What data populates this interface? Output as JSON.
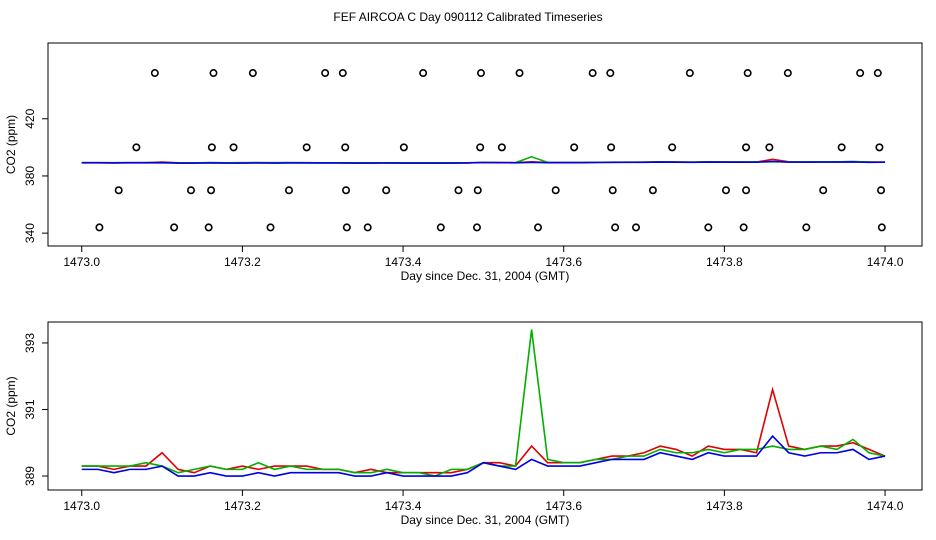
{
  "title": "FEF AIRCOA C  Day 090112  Calibrated Timeseries",
  "chart_data": [
    {
      "type": "scatter",
      "xlabel": "Day since Dec. 31, 2004 (GMT)",
      "ylabel": "CO2 (ppm)",
      "xlim": [
        1472.958,
        1474.046
      ],
      "ylim": [
        331,
        473
      ],
      "xticks": [
        {
          "value": 1473.0,
          "label": "1473.0"
        },
        {
          "value": 1473.2,
          "label": "1473.2"
        },
        {
          "value": 1473.4,
          "label": "1473.4"
        },
        {
          "value": 1473.6,
          "label": "1473.6"
        },
        {
          "value": 1473.8,
          "label": "1473.8"
        },
        {
          "value": 1474.0,
          "label": "1474.0"
        }
      ],
      "yticks": [
        340,
        380,
        420
      ],
      "x": [
        1473.0,
        1473.02,
        1473.04,
        1473.06,
        1473.08,
        1473.1,
        1473.12,
        1473.14,
        1473.16,
        1473.18,
        1473.2,
        1473.22,
        1473.24,
        1473.26,
        1473.28,
        1473.3,
        1473.32,
        1473.34,
        1473.36,
        1473.38,
        1473.4,
        1473.42,
        1473.44,
        1473.46,
        1473.48,
        1473.5,
        1473.52,
        1473.54,
        1473.56,
        1473.58,
        1473.6,
        1473.62,
        1473.64,
        1473.66,
        1473.68,
        1473.7,
        1473.72,
        1473.74,
        1473.76,
        1473.78,
        1473.8,
        1473.82,
        1473.84,
        1473.86,
        1473.88,
        1473.9,
        1473.92,
        1473.94,
        1473.96,
        1473.98,
        1474.0
      ],
      "series": [
        {
          "type": "scatter",
          "color": "#000000",
          "x": [
            1473.091,
            1473.164,
            1473.213,
            1473.303,
            1473.325,
            1473.425,
            1473.497,
            1473.545,
            1473.636,
            1473.658,
            1473.757,
            1473.829,
            1473.879,
            1473.969,
            1473.991,
            1473.068,
            1473.162,
            1473.189,
            1473.28,
            1473.328,
            1473.401,
            1473.496,
            1473.523,
            1473.613,
            1473.659,
            1473.735,
            1473.827,
            1473.856,
            1473.946,
            1473.993,
            1473.046,
            1473.136,
            1473.161,
            1473.258,
            1473.329,
            1473.379,
            1473.469,
            1473.493,
            1473.59,
            1473.661,
            1473.711,
            1473.802,
            1473.827,
            1473.923,
            1473.995,
            1473.022,
            1473.115,
            1473.158,
            1473.235,
            1473.33,
            1473.356,
            1473.447,
            1473.492,
            1473.568,
            1473.664,
            1473.69,
            1473.78,
            1473.824,
            1473.902,
            1473.996
          ],
          "values": [
            452,
            452,
            452,
            452,
            452,
            452,
            452,
            452,
            452,
            452,
            452,
            452,
            452,
            452,
            452,
            400,
            400,
            400,
            400,
            400,
            400,
            400,
            400,
            400,
            400,
            400,
            400,
            400,
            400,
            400,
            370,
            370,
            370,
            370,
            370,
            370,
            370,
            370,
            370,
            370,
            370,
            370,
            370,
            370,
            370,
            344,
            344,
            344,
            344,
            344,
            344,
            344,
            344,
            344,
            344,
            344,
            344,
            344,
            344,
            344
          ]
        },
        {
          "type": "line",
          "color": "#e00000",
          "values": [
            389.3,
            389.3,
            389.2,
            389.3,
            389.3,
            389.7,
            389.2,
            389.1,
            389.3,
            389.2,
            389.3,
            389.2,
            389.3,
            389.3,
            389.3,
            389.2,
            389.2,
            389.1,
            389.2,
            389.1,
            389.1,
            389.1,
            389.1,
            389.1,
            389.2,
            389.4,
            389.4,
            389.3,
            389.9,
            389.4,
            389.4,
            389.4,
            389.5,
            389.6,
            389.6,
            389.7,
            389.9,
            389.8,
            389.6,
            389.9,
            389.8,
            389.8,
            389.7,
            391.6,
            389.9,
            389.8,
            389.9,
            389.9,
            390.0,
            389.8,
            389.6
          ]
        },
        {
          "type": "line",
          "color": "#00b000",
          "values": [
            389.3,
            389.3,
            389.3,
            389.3,
            389.4,
            389.3,
            389.1,
            389.2,
            389.3,
            389.2,
            389.2,
            389.4,
            389.2,
            389.3,
            389.2,
            389.2,
            389.2,
            389.1,
            389.1,
            389.2,
            389.1,
            389.1,
            389.0,
            389.2,
            389.2,
            389.4,
            389.3,
            389.3,
            393.4,
            389.5,
            389.4,
            389.4,
            389.5,
            389.5,
            389.6,
            389.6,
            389.8,
            389.7,
            389.7,
            389.8,
            389.7,
            389.8,
            389.8,
            389.9,
            389.8,
            389.8,
            389.9,
            389.8,
            390.1,
            389.7,
            389.6
          ]
        },
        {
          "type": "line",
          "color": "#0000e0",
          "values": [
            389.2,
            389.2,
            389.1,
            389.2,
            389.2,
            389.3,
            389.0,
            389.0,
            389.1,
            389.0,
            389.0,
            389.1,
            389.0,
            389.1,
            389.1,
            389.1,
            389.1,
            389.0,
            389.0,
            389.1,
            389.0,
            389.0,
            389.0,
            389.0,
            389.1,
            389.4,
            389.3,
            389.2,
            389.5,
            389.3,
            389.3,
            389.3,
            389.4,
            389.5,
            389.5,
            389.5,
            389.7,
            389.6,
            389.5,
            389.7,
            389.6,
            389.6,
            389.6,
            390.2,
            389.7,
            389.6,
            389.7,
            389.7,
            389.8,
            389.5,
            389.6
          ]
        }
      ]
    },
    {
      "type": "line",
      "xlabel": "Day since Dec. 31, 2004 (GMT)",
      "ylabel": "CO2 (ppm)",
      "xlim": [
        1472.958,
        1474.046
      ],
      "ylim": [
        388.58,
        393.63
      ],
      "xticks": [
        {
          "value": 1473.0,
          "label": "1473.0"
        },
        {
          "value": 1473.2,
          "label": "1473.2"
        },
        {
          "value": 1473.4,
          "label": "1473.4"
        },
        {
          "value": 1473.6,
          "label": "1473.6"
        },
        {
          "value": 1473.8,
          "label": "1473.8"
        },
        {
          "value": 1474.0,
          "label": "1474.0"
        }
      ],
      "yticks": [
        389,
        391,
        393
      ],
      "x": [
        1473.0,
        1473.02,
        1473.04,
        1473.06,
        1473.08,
        1473.1,
        1473.12,
        1473.14,
        1473.16,
        1473.18,
        1473.2,
        1473.22,
        1473.24,
        1473.26,
        1473.28,
        1473.3,
        1473.32,
        1473.34,
        1473.36,
        1473.38,
        1473.4,
        1473.42,
        1473.44,
        1473.46,
        1473.48,
        1473.5,
        1473.52,
        1473.54,
        1473.56,
        1473.58,
        1473.6,
        1473.62,
        1473.64,
        1473.66,
        1473.68,
        1473.7,
        1473.72,
        1473.74,
        1473.76,
        1473.78,
        1473.8,
        1473.82,
        1473.84,
        1473.86,
        1473.88,
        1473.9,
        1473.92,
        1473.94,
        1473.96,
        1473.98,
        1474.0
      ],
      "series": [
        {
          "color": "#e00000",
          "values": [
            389.3,
            389.3,
            389.2,
            389.3,
            389.3,
            389.7,
            389.2,
            389.1,
            389.3,
            389.2,
            389.3,
            389.2,
            389.3,
            389.3,
            389.3,
            389.2,
            389.2,
            389.1,
            389.2,
            389.1,
            389.1,
            389.1,
            389.1,
            389.1,
            389.2,
            389.4,
            389.4,
            389.3,
            389.9,
            389.4,
            389.4,
            389.4,
            389.5,
            389.6,
            389.6,
            389.7,
            389.9,
            389.8,
            389.6,
            389.9,
            389.8,
            389.8,
            389.7,
            391.6,
            389.9,
            389.8,
            389.9,
            389.9,
            390.0,
            389.8,
            389.6
          ]
        },
        {
          "color": "#00b000",
          "values": [
            389.3,
            389.3,
            389.3,
            389.3,
            389.4,
            389.3,
            389.1,
            389.2,
            389.3,
            389.2,
            389.2,
            389.4,
            389.2,
            389.3,
            389.2,
            389.2,
            389.2,
            389.1,
            389.1,
            389.2,
            389.1,
            389.1,
            389.0,
            389.2,
            389.2,
            389.4,
            389.3,
            389.3,
            393.4,
            389.5,
            389.4,
            389.4,
            389.5,
            389.5,
            389.6,
            389.6,
            389.8,
            389.7,
            389.7,
            389.8,
            389.7,
            389.8,
            389.8,
            389.9,
            389.8,
            389.8,
            389.9,
            389.8,
            390.1,
            389.7,
            389.6
          ]
        },
        {
          "color": "#0000e0",
          "values": [
            389.2,
            389.2,
            389.1,
            389.2,
            389.2,
            389.3,
            389.0,
            389.0,
            389.1,
            389.0,
            389.0,
            389.1,
            389.0,
            389.1,
            389.1,
            389.1,
            389.1,
            389.0,
            389.0,
            389.1,
            389.0,
            389.0,
            389.0,
            389.0,
            389.1,
            389.4,
            389.3,
            389.2,
            389.5,
            389.3,
            389.3,
            389.3,
            389.4,
            389.5,
            389.5,
            389.5,
            389.7,
            389.6,
            389.5,
            389.7,
            389.6,
            389.6,
            389.6,
            390.2,
            389.7,
            389.6,
            389.7,
            389.7,
            389.8,
            389.5,
            389.6
          ]
        }
      ]
    }
  ]
}
